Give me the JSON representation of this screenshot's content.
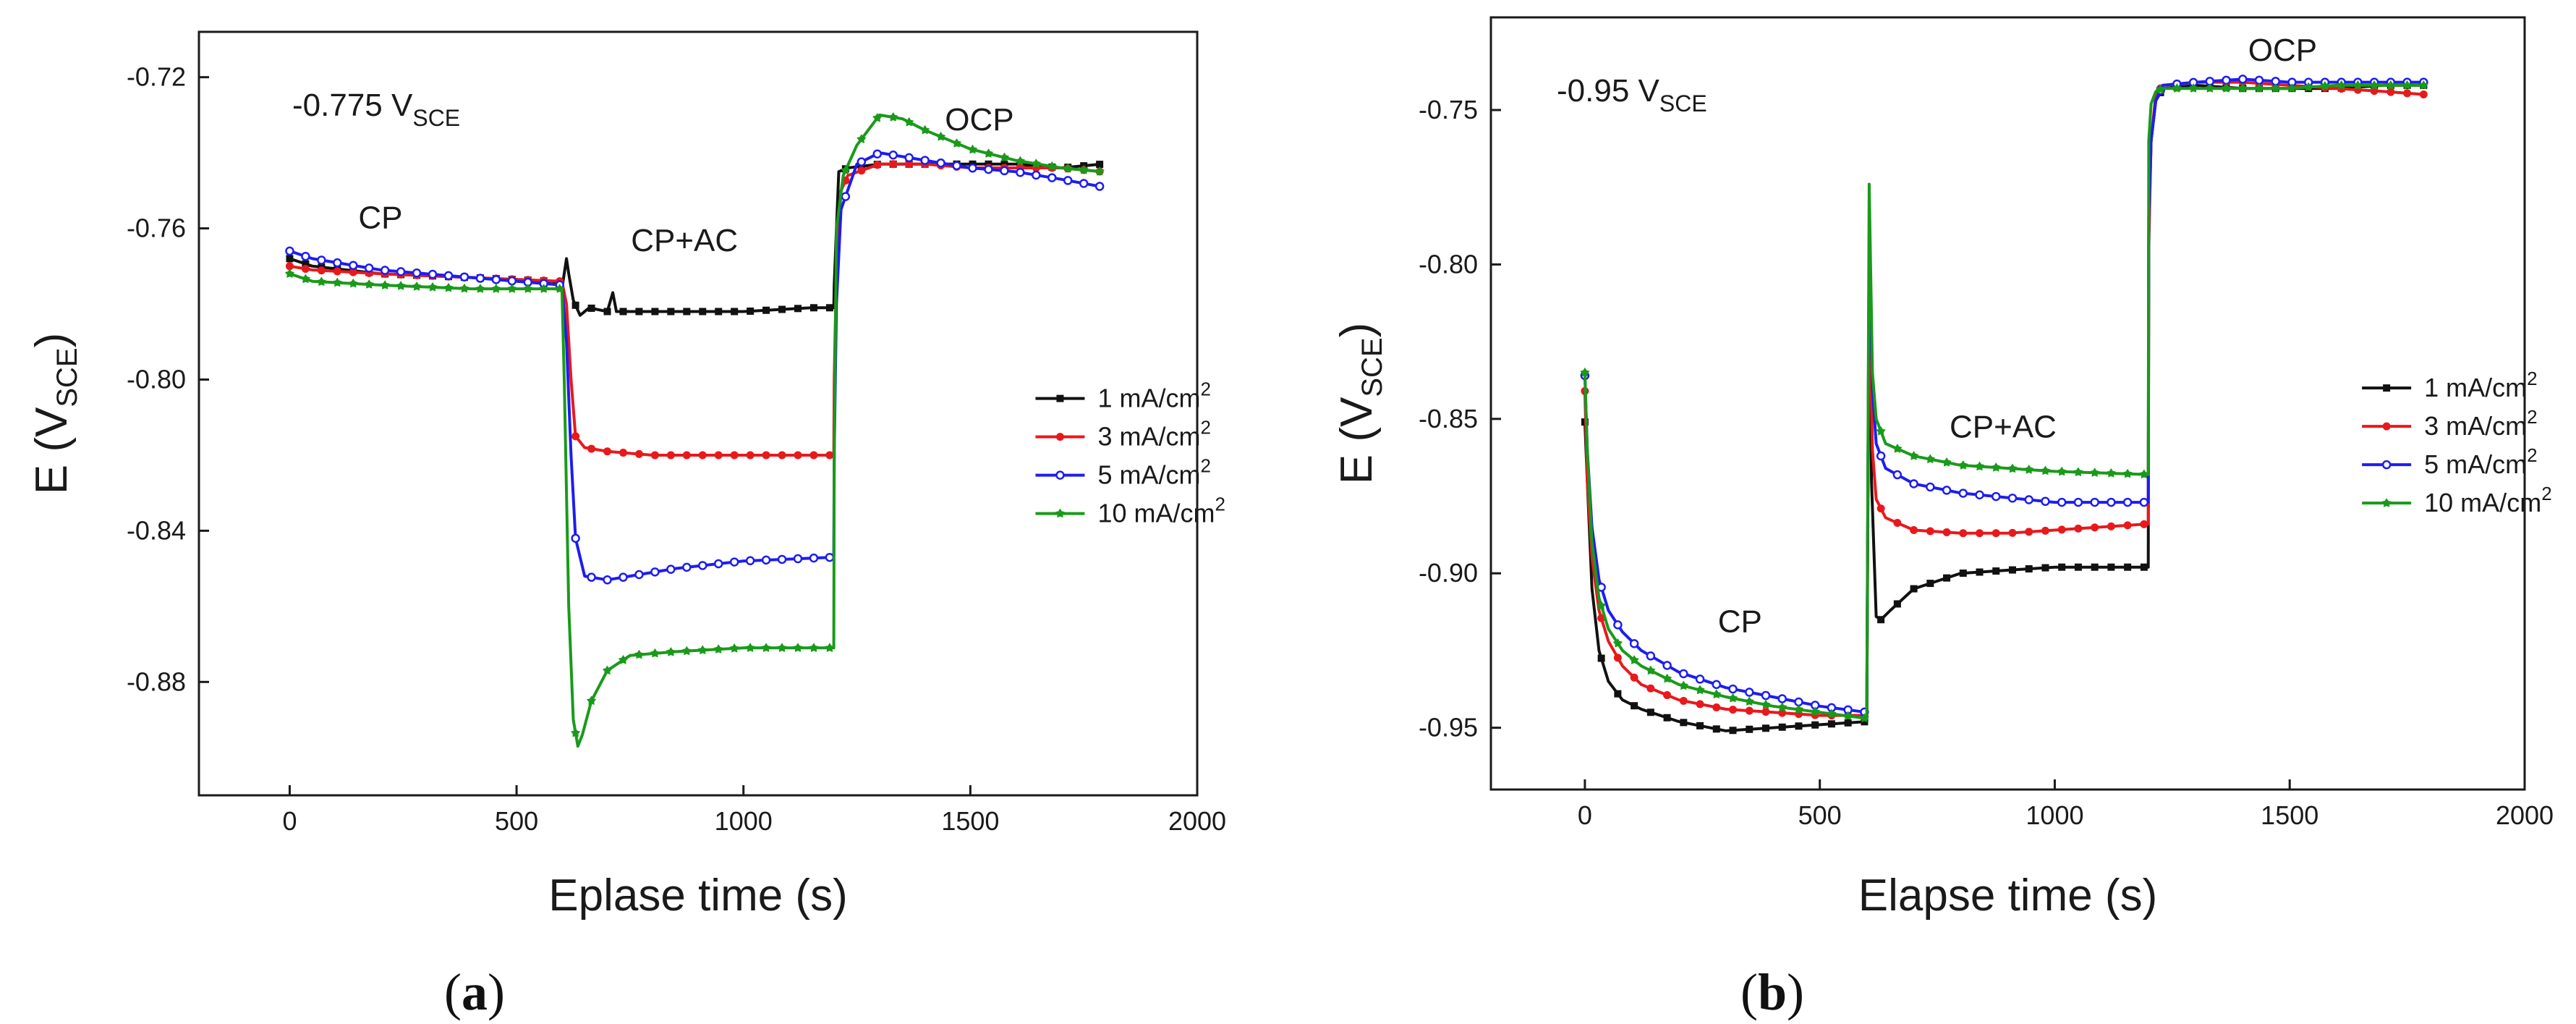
{
  "colors": {
    "s1": "#111111",
    "s3": "#e8191c",
    "s5": "#1d1df0",
    "s10": "#1a9a1a"
  },
  "legend_labels": [
    "1 mA/cm",
    "3 mA/cm",
    "5 mA/cm",
    "10 mA/cm"
  ],
  "legend_exponent": "2",
  "chart_data": [
    {
      "id": "a",
      "type": "line",
      "caption": "a",
      "condition_base": "-0.775 V",
      "condition_sub": "SCE",
      "xlabel": "Eplase time (s)",
      "ylabel_base": "E (V",
      "ylabel_sub": "SCE",
      "ylabel_close": ")",
      "xlim": [
        -200,
        2000
      ],
      "ylim": [
        -0.91,
        -0.708
      ],
      "xticks": [
        0,
        500,
        1000,
        1500,
        2000
      ],
      "yticks": [
        -0.72,
        -0.76,
        -0.8,
        -0.84,
        -0.88
      ],
      "ytick_labels": [
        "-0.72",
        "-0.76",
        "-0.80",
        "-0.84",
        "-0.88"
      ],
      "annotations": [
        {
          "text": "CP",
          "x": 200,
          "y": -0.76
        },
        {
          "text": "CP+AC",
          "x": 870,
          "y": -0.766
        },
        {
          "text": "OCP",
          "x": 1520,
          "y": -0.734
        }
      ],
      "legend": {
        "x": 1650,
        "y": -0.805
      },
      "series": [
        {
          "name": "1 mA/cm2",
          "color_key": "s1",
          "marker": "square",
          "x": [
            0,
            50,
            200,
            400,
            580,
            600,
            610,
            615,
            625,
            640,
            660,
            700,
            712,
            720,
            750,
            850,
            1000,
            1150,
            1199,
            1200,
            1205,
            1210,
            1230,
            1300,
            1400,
            1500,
            1600,
            1700,
            1790
          ],
          "y": [
            -0.768,
            -0.77,
            -0.772,
            -0.773,
            -0.774,
            -0.776,
            -0.768,
            -0.772,
            -0.779,
            -0.783,
            -0.781,
            -0.782,
            -0.777,
            -0.782,
            -0.782,
            -0.782,
            -0.782,
            -0.781,
            -0.781,
            -0.775,
            -0.76,
            -0.745,
            -0.744,
            -0.743,
            -0.743,
            -0.743,
            -0.743,
            -0.744,
            -0.743
          ]
        },
        {
          "name": "3 mA/cm2",
          "color_key": "s3",
          "marker": "circle",
          "x": [
            0,
            50,
            200,
            400,
            600,
            610,
            620,
            630,
            650,
            700,
            800,
            1000,
            1199,
            1200,
            1205,
            1215,
            1230,
            1300,
            1400,
            1500,
            1600,
            1700,
            1790
          ],
          "y": [
            -0.77,
            -0.771,
            -0.772,
            -0.773,
            -0.774,
            -0.78,
            -0.8,
            -0.815,
            -0.818,
            -0.819,
            -0.82,
            -0.82,
            -0.82,
            -0.8,
            -0.77,
            -0.75,
            -0.746,
            -0.743,
            -0.743,
            -0.744,
            -0.744,
            -0.744,
            -0.745
          ]
        },
        {
          "name": "5 mA/cm2",
          "color_key": "s5",
          "marker": "open-circle",
          "x": [
            0,
            50,
            200,
            400,
            600,
            610,
            620,
            630,
            650,
            700,
            750,
            850,
            1000,
            1199,
            1200,
            1205,
            1215,
            1250,
            1300,
            1400,
            1500,
            1600,
            1700,
            1790
          ],
          "y": [
            -0.766,
            -0.768,
            -0.771,
            -0.773,
            -0.775,
            -0.79,
            -0.82,
            -0.842,
            -0.852,
            -0.853,
            -0.852,
            -0.85,
            -0.848,
            -0.847,
            -0.82,
            -0.78,
            -0.755,
            -0.743,
            -0.74,
            -0.742,
            -0.744,
            -0.745,
            -0.747,
            -0.749
          ]
        },
        {
          "name": "10 mA/cm2",
          "color_key": "s10",
          "marker": "star",
          "x": [
            0,
            50,
            200,
            400,
            600,
            605,
            615,
            625,
            635,
            645,
            665,
            700,
            750,
            850,
            1000,
            1199,
            1200,
            1205,
            1220,
            1250,
            1300,
            1350,
            1400,
            1500,
            1600,
            1700,
            1790
          ],
          "y": [
            -0.772,
            -0.774,
            -0.775,
            -0.776,
            -0.776,
            -0.8,
            -0.86,
            -0.89,
            -0.897,
            -0.894,
            -0.885,
            -0.877,
            -0.873,
            -0.872,
            -0.871,
            -0.871,
            -0.82,
            -0.76,
            -0.746,
            -0.738,
            -0.73,
            -0.731,
            -0.734,
            -0.739,
            -0.742,
            -0.744,
            -0.745
          ]
        }
      ]
    },
    {
      "id": "b",
      "type": "line",
      "caption": "b",
      "condition_base": "-0.95 V",
      "condition_sub": "SCE",
      "xlabel": "Elapse time (s)",
      "ylabel_base": "E (V",
      "ylabel_sub": "SCE",
      "ylabel_close": ")",
      "xlim": [
        -200,
        2000
      ],
      "ylim": [
        -0.97,
        -0.72
      ],
      "xticks": [
        0,
        500,
        1000,
        1500,
        2000
      ],
      "yticks": [
        -0.75,
        -0.8,
        -0.85,
        -0.9,
        -0.95
      ],
      "ytick_labels": [
        "-0.75",
        "-0.80",
        "-0.85",
        "-0.90",
        "-0.95"
      ],
      "annotations": [
        {
          "text": "CP",
          "x": 330,
          "y": -0.919
        },
        {
          "text": "CP+AC",
          "x": 890,
          "y": -0.856
        },
        {
          "text": "OCP",
          "x": 1485,
          "y": -0.734
        }
      ],
      "legend": {
        "x": 1660,
        "y": -0.84
      },
      "series": [
        {
          "name": "1 mA/cm2",
          "color_key": "s1",
          "marker": "square",
          "x": [
            0,
            5,
            15,
            30,
            50,
            80,
            120,
            200,
            300,
            400,
            500,
            600,
            605,
            610,
            620,
            630,
            650,
            700,
            800,
            1000,
            1199,
            1200,
            1205,
            1215,
            1230,
            1300,
            1400,
            1500,
            1600,
            1700,
            1790
          ],
          "y": [
            -0.851,
            -0.87,
            -0.905,
            -0.925,
            -0.935,
            -0.941,
            -0.944,
            -0.948,
            -0.951,
            -0.95,
            -0.949,
            -0.948,
            -0.792,
            -0.87,
            -0.914,
            -0.915,
            -0.912,
            -0.905,
            -0.9,
            -0.898,
            -0.898,
            -0.79,
            -0.76,
            -0.747,
            -0.743,
            -0.742,
            -0.743,
            -0.743,
            -0.743,
            -0.742,
            -0.742
          ]
        },
        {
          "name": "3 mA/cm2",
          "color_key": "s3",
          "marker": "circle",
          "x": [
            0,
            5,
            15,
            30,
            50,
            80,
            120,
            200,
            300,
            400,
            500,
            600,
            605,
            612,
            620,
            640,
            700,
            800,
            900,
            1000,
            1199,
            1200,
            1205,
            1215,
            1230,
            1300,
            1400,
            1500,
            1600,
            1700,
            1790
          ],
          "y": [
            -0.841,
            -0.87,
            -0.895,
            -0.912,
            -0.922,
            -0.93,
            -0.936,
            -0.941,
            -0.944,
            -0.945,
            -0.946,
            -0.946,
            -0.805,
            -0.86,
            -0.876,
            -0.882,
            -0.886,
            -0.887,
            -0.887,
            -0.886,
            -0.884,
            -0.795,
            -0.76,
            -0.745,
            -0.742,
            -0.741,
            -0.741,
            -0.742,
            -0.743,
            -0.744,
            -0.745
          ]
        },
        {
          "name": "5 mA/cm2",
          "color_key": "s5",
          "marker": "open-circle",
          "x": [
            0,
            5,
            15,
            30,
            50,
            80,
            120,
            200,
            300,
            400,
            500,
            600,
            605,
            612,
            620,
            640,
            700,
            800,
            1000,
            1199,
            1200,
            1205,
            1215,
            1230,
            1300,
            1400,
            1500,
            1600,
            1700,
            1790
          ],
          "y": [
            -0.836,
            -0.86,
            -0.885,
            -0.902,
            -0.912,
            -0.919,
            -0.925,
            -0.932,
            -0.937,
            -0.94,
            -0.943,
            -0.945,
            -0.79,
            -0.84,
            -0.858,
            -0.866,
            -0.871,
            -0.874,
            -0.877,
            -0.877,
            -0.785,
            -0.76,
            -0.747,
            -0.742,
            -0.741,
            -0.74,
            -0.741,
            -0.741,
            -0.741,
            -0.741
          ]
        },
        {
          "name": "10 mA/cm2",
          "color_key": "s10",
          "marker": "star",
          "x": [
            0,
            5,
            15,
            30,
            50,
            80,
            120,
            200,
            300,
            400,
            500,
            600,
            605,
            612,
            620,
            640,
            700,
            800,
            1000,
            1199,
            1200,
            1205,
            1215,
            1230,
            1300,
            1400,
            1500,
            1600,
            1700,
            1790
          ],
          "y": [
            -0.835,
            -0.86,
            -0.89,
            -0.908,
            -0.918,
            -0.925,
            -0.93,
            -0.936,
            -0.94,
            -0.943,
            -0.945,
            -0.947,
            -0.774,
            -0.835,
            -0.85,
            -0.858,
            -0.862,
            -0.865,
            -0.867,
            -0.868,
            -0.76,
            -0.748,
            -0.744,
            -0.743,
            -0.743,
            -0.743,
            -0.743,
            -0.742,
            -0.742,
            -0.742
          ]
        }
      ]
    }
  ]
}
